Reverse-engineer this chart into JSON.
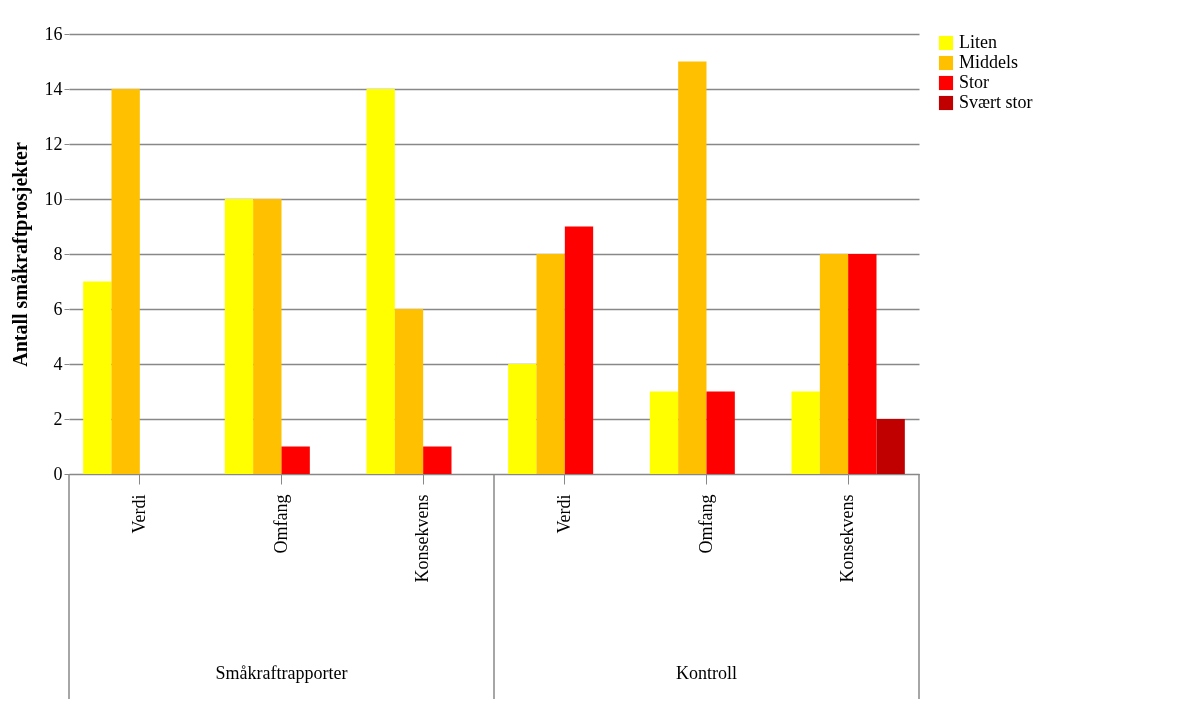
{
  "chart_data": {
    "type": "bar",
    "ylabel": "Antall småkraftprosjekter",
    "categories": [
      "Verdi",
      "Omfang",
      "Konsekvens",
      "Verdi",
      "Omfang",
      "Konsekvens"
    ],
    "series": [
      {
        "name": "Liten",
        "color": "#ffff00",
        "values": [
          7,
          10,
          14,
          4,
          3,
          3
        ]
      },
      {
        "name": "Middels",
        "color": "#ffc000",
        "values": [
          14,
          10,
          6,
          8,
          15,
          8
        ]
      },
      {
        "name": "Stor",
        "color": "#ff0000",
        "values": [
          0,
          1,
          1,
          9,
          3,
          8
        ]
      },
      {
        "name": "Svært stor",
        "color": "#c00000",
        "values": [
          0,
          0,
          0,
          0,
          0,
          2
        ]
      }
    ],
    "annotations": [
      "Småkraftrapporter",
      "Kontroll"
    ],
    "ylim": [
      0,
      16
    ],
    "yticks": [
      0,
      2,
      4,
      6,
      8,
      10,
      12,
      14,
      16
    ],
    "grid": "y",
    "legend": "right"
  }
}
